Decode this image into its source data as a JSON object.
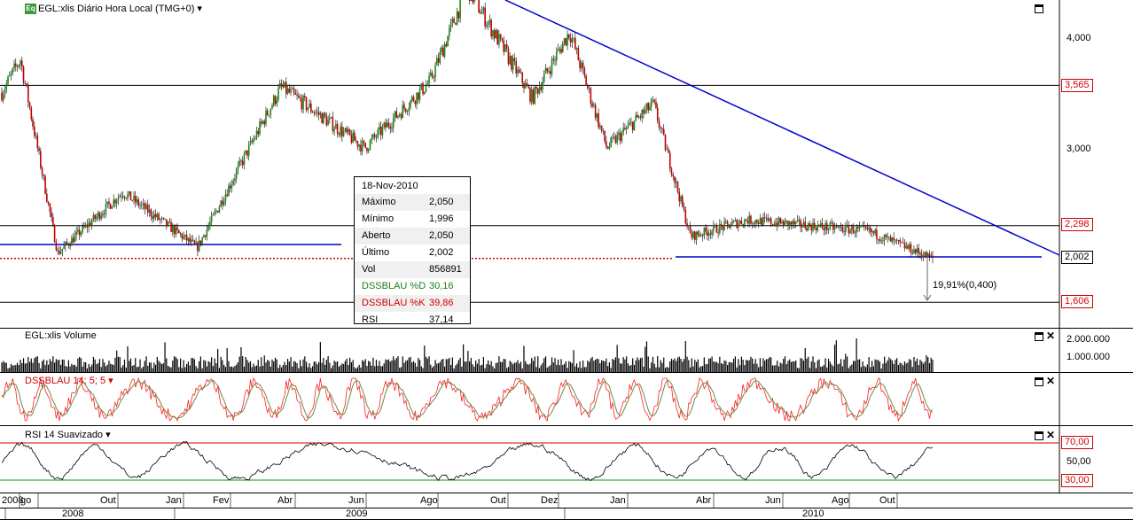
{
  "header": {
    "title": "EGL:xlis Diário Hora Local (TMG+0)",
    "badge": "Eq"
  },
  "price_axis": {
    "ticks": [
      "4,000",
      "3,000"
    ],
    "tags": {
      "r1": "3,565",
      "r2": "2,298",
      "cur": "2,002",
      "s1": "1,606"
    }
  },
  "volume_panel": {
    "title": "EGL:xlis Volume",
    "ticks": [
      "2.000.000",
      "1.000.000"
    ]
  },
  "dss_panel": {
    "title": "DSSBLAU 14; 5; 5"
  },
  "rsi_panel": {
    "title": "RSI 14 Suavizado",
    "ticks": [
      "70,00",
      "50,00",
      "30,00"
    ]
  },
  "measure_label": "19,91%(0,400)",
  "tooltip": {
    "date": "18-Nov-2010",
    "rows": [
      {
        "k": "Máximo",
        "v": "2,050",
        "color": "#000000"
      },
      {
        "k": "Mínimo",
        "v": "1,996",
        "color": "#000000"
      },
      {
        "k": "Aberto",
        "v": "2,050",
        "color": "#000000"
      },
      {
        "k": "Último",
        "v": "2,002",
        "color": "#000000"
      },
      {
        "k": "Vol",
        "v": "856891",
        "color": "#000000"
      },
      {
        "k": "DSSBLAU %D",
        "v": "30,16",
        "color": "#1a7f1a"
      },
      {
        "k": "DSSBLAU %K",
        "v": "39,86",
        "color": "#d00000"
      },
      {
        "k": "RSI",
        "v": "37,14",
        "color": "#000000"
      }
    ]
  },
  "time_axis": {
    "months": [
      "2008",
      "go",
      "Out",
      "Jan",
      "Fev",
      "Abr",
      "Jun",
      "Ago",
      "Out",
      "Dez",
      "Jan",
      "Abr",
      "Jun",
      "Ago",
      "Out"
    ],
    "years": [
      "2008",
      "2009",
      "2010"
    ]
  },
  "colors": {
    "up": "#1a8a1a",
    "down": "#c00000",
    "trend": "#0000cc",
    "support": "#0000cc",
    "level": "#000000",
    "rsi_hi": "#d00000",
    "rsi_lo": "#1a8a1a",
    "dss_k": "#ff2020",
    "dss_d": "#6a8a4a",
    "rsi_line": "#000000"
  },
  "chart_data": [
    {
      "type": "candlestick",
      "title": "EGL:xlis Diário Hora Local (TMG+0)",
      "x_range": [
        "2008-07",
        "2010-11-18"
      ],
      "ylim": [
        1.5,
        4.5
      ],
      "key_points": [
        {
          "date": "2008-07",
          "close": 3.5
        },
        {
          "date": "2008-08",
          "close": 3.8
        },
        {
          "date": "2008-10",
          "close": 2.05
        },
        {
          "date": "2008-12",
          "close": 2.6
        },
        {
          "date": "2009-02",
          "close": 2.1
        },
        {
          "date": "2009-04",
          "close": 3.55
        },
        {
          "date": "2009-06",
          "close": 3.0
        },
        {
          "date": "2009-08",
          "close": 3.6
        },
        {
          "date": "2009-09",
          "close": 4.45
        },
        {
          "date": "2009-11",
          "close": 3.45
        },
        {
          "date": "2009-12",
          "close": 4.05
        },
        {
          "date": "2010-01",
          "close": 3.0
        },
        {
          "date": "2010-03",
          "close": 3.4
        },
        {
          "date": "2010-04",
          "close": 2.2
        },
        {
          "date": "2010-06",
          "close": 2.35
        },
        {
          "date": "2010-09",
          "close": 2.25
        },
        {
          "date": "2010-11-18",
          "close": 2.002
        }
      ],
      "horizontal_levels": [
        3.565,
        2.298,
        1.606
      ],
      "support_line": 2.002,
      "last": {
        "date": "18-Nov-2010",
        "high": 2.05,
        "low": 1.996,
        "open": 2.05,
        "close": 2.002,
        "volume": 856891
      }
    },
    {
      "type": "bar",
      "title": "EGL:xlis Volume",
      "ylim": [
        0,
        2500000
      ]
    },
    {
      "type": "line",
      "title": "DSSBLAU 14; 5; 5",
      "ylim": [
        0,
        100
      ],
      "series": [
        {
          "name": "%D",
          "last": 30.16
        },
        {
          "name": "%K",
          "last": 39.86
        }
      ]
    },
    {
      "type": "line",
      "title": "RSI 14 Suavizado",
      "ylim": [
        20,
        80
      ],
      "levels": [
        70,
        30
      ],
      "last": 37.14
    }
  ]
}
